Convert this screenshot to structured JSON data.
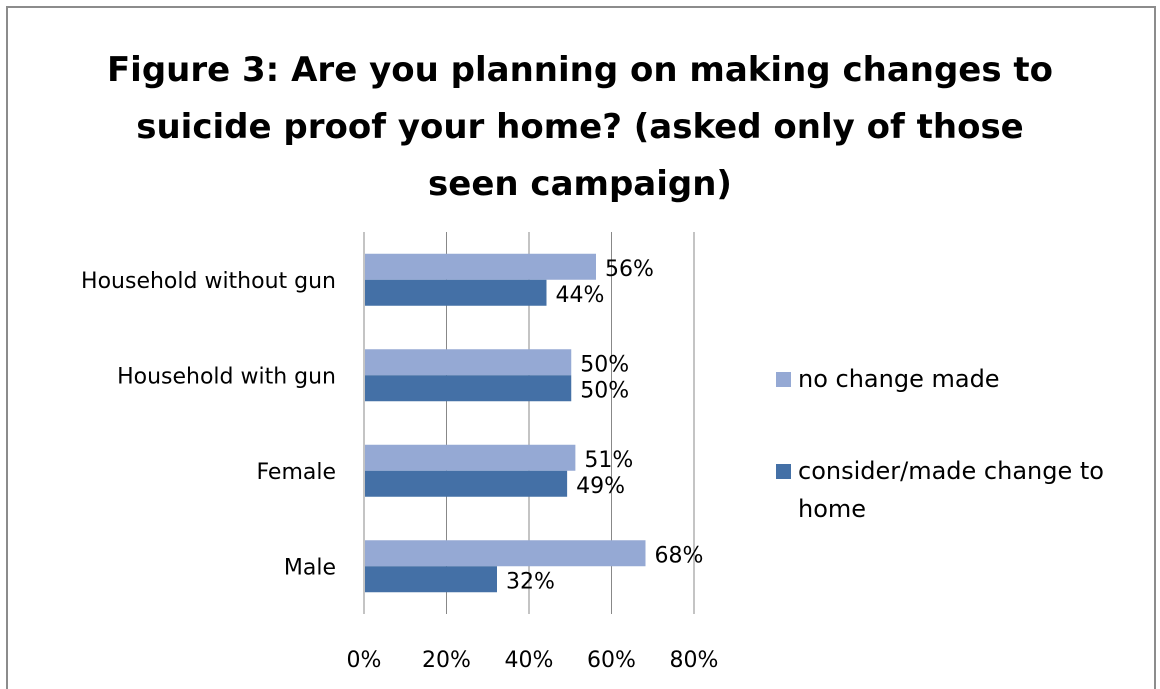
{
  "chart_data": {
    "type": "bar",
    "orientation": "horizontal",
    "title": "Figure 3: Are you planning on making changes to suicide proof your home? (asked only of those seen campaign)",
    "title_lines": [
      "Figure 3: Are you planning on making changes to",
      "suicide proof your home? (asked only of those",
      "seen campaign)"
    ],
    "categories": [
      "Household without gun",
      "Household with gun",
      "Female",
      "Male"
    ],
    "series": [
      {
        "name": "no change made",
        "values": [
          56,
          50,
          51,
          68
        ],
        "labels": [
          "56%",
          "50%",
          "51%",
          "68%"
        ],
        "color": "#95a9d4"
      },
      {
        "name": "consider/made change to home",
        "values": [
          44,
          50,
          49,
          32
        ],
        "labels": [
          "44%",
          "50%",
          "49%",
          "32%"
        ],
        "color": "#4470a6"
      }
    ],
    "xlim": [
      0,
      80
    ],
    "xticks": [
      "0%",
      "20%",
      "40%",
      "60%",
      "80%"
    ],
    "grid": true,
    "legend_position": "right"
  },
  "legend": {
    "items": [
      "no change made",
      "consider/made change to home"
    ]
  },
  "colors": {
    "light_bar": "#95a9d4",
    "dark_bar": "#4470a6",
    "grid": "#888888",
    "frame": "#8c8c8c"
  }
}
